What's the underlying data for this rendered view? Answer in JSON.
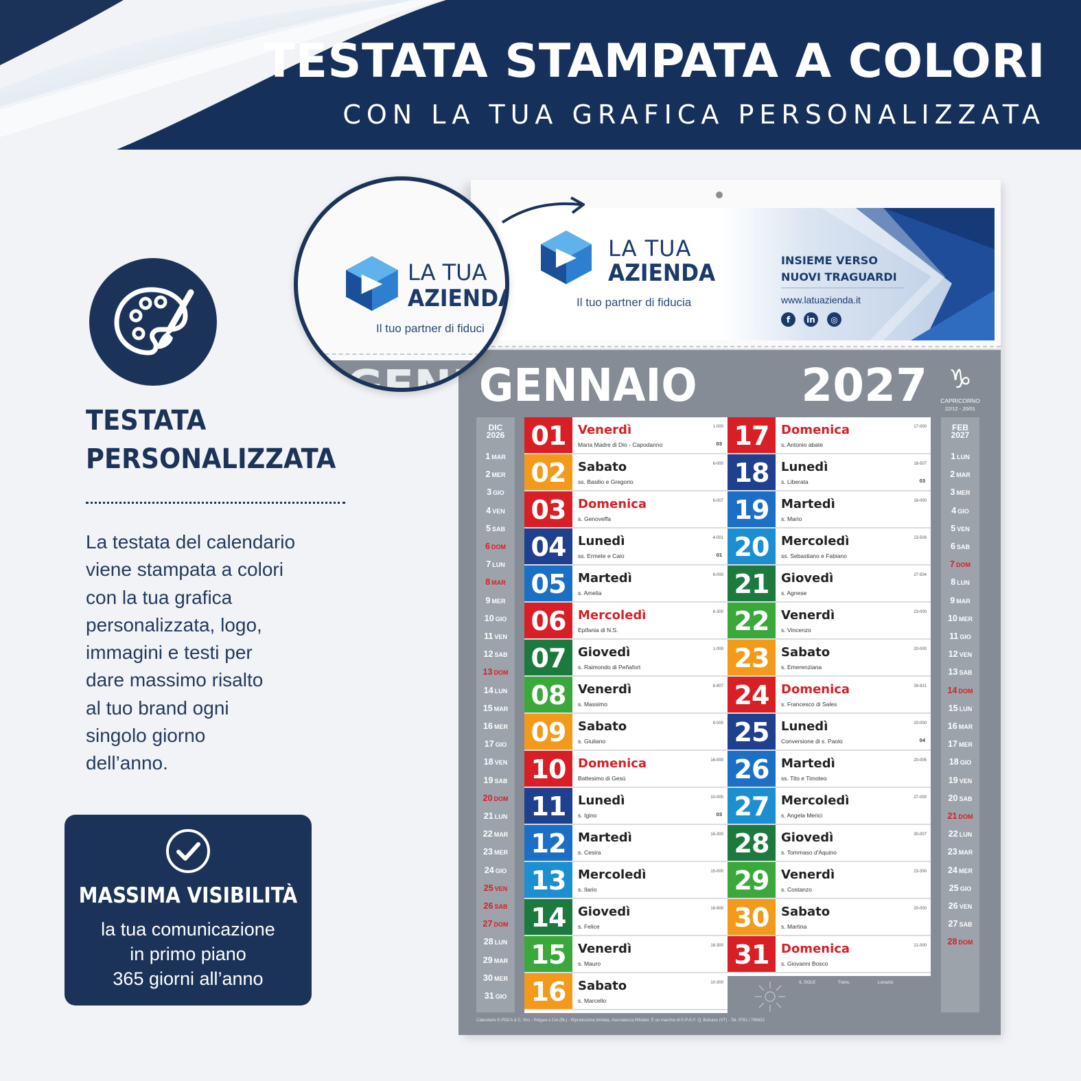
{
  "banner": {
    "title": "TESTATA STAMPATA A COLORI",
    "subtitle": "CON LA TUA GRAFICA PERSONALIZZATA",
    "color": "#1b3358"
  },
  "left": {
    "icon": "palette-icon",
    "title_lines": [
      "TESTATA",
      "PERSONALIZZATA"
    ],
    "body_lines": [
      "La testata del calendario",
      "viene stampata a colori",
      "con la tua grafica",
      "personalizzata, logo,",
      "immagini e testi per",
      "dare massimo risalto",
      "al tuo brand ogni",
      "singolo giorno",
      "dell’anno."
    ],
    "box": {
      "icon": "check-circle-icon",
      "title": "MASSIMA VISIBILITÀ",
      "lines": [
        "la tua comunicazione",
        "in primo piano",
        "365 giorni all’anno"
      ]
    }
  },
  "zoom": {
    "la": "LA TUA",
    "az": "AZIENDA",
    "tag": "Il tuo partner di fiduci",
    "month_fragment": "GENNAI"
  },
  "header": {
    "la": "LA TUA",
    "az": "AZIENDA",
    "tagline": "Il tuo partner di fiducia",
    "slogan": [
      "INSIEME VERSO",
      "NUOVI TRAGUARDI"
    ],
    "url": "www.latuazienda.it",
    "social": [
      "f",
      "in",
      "◎"
    ],
    "social_icons": [
      "facebook-icon",
      "linkedin-icon",
      "instagram-icon"
    ]
  },
  "calendar": {
    "month": "GENNAIO",
    "year": "2027",
    "zodiac_symbol": "♑",
    "zodiac_name": "CAPRICORNO",
    "zodiac_dates": "22/12 - 20/01",
    "prev": {
      "head": [
        "DIC",
        "2026"
      ],
      "days": [
        [
          "1",
          "MAR"
        ],
        [
          "2",
          "MER"
        ],
        [
          "3",
          "GIO"
        ],
        [
          "4",
          "VEN"
        ],
        [
          "5",
          "SAB"
        ],
        [
          "6",
          "DOM"
        ],
        [
          "7",
          "LUN"
        ],
        [
          "8",
          "MAR"
        ],
        [
          "9",
          "MER"
        ],
        [
          "10",
          "GIO"
        ],
        [
          "11",
          "VEN"
        ],
        [
          "12",
          "SAB"
        ],
        [
          "13",
          "DOM"
        ],
        [
          "14",
          "LUN"
        ],
        [
          "15",
          "MAR"
        ],
        [
          "16",
          "MER"
        ],
        [
          "17",
          "GIO"
        ],
        [
          "18",
          "VEN"
        ],
        [
          "19",
          "SAB"
        ],
        [
          "20",
          "DOM"
        ],
        [
          "21",
          "LUN"
        ],
        [
          "22",
          "MAR"
        ],
        [
          "23",
          "MER"
        ],
        [
          "24",
          "GIO"
        ],
        [
          "25",
          "VEN"
        ],
        [
          "26",
          "SAB"
        ],
        [
          "27",
          "DOM"
        ],
        [
          "28",
          "LUN"
        ],
        [
          "29",
          "MAR"
        ],
        [
          "30",
          "MER"
        ],
        [
          "31",
          "GIO"
        ]
      ],
      "red": [
        "6",
        "8",
        "13",
        "20",
        "25",
        "26",
        "27"
      ]
    },
    "next": {
      "head": [
        "FEB",
        "2027"
      ],
      "days": [
        [
          "1",
          "LUN"
        ],
        [
          "2",
          "MAR"
        ],
        [
          "3",
          "MER"
        ],
        [
          "4",
          "GIO"
        ],
        [
          "5",
          "VEN"
        ],
        [
          "6",
          "SAB"
        ],
        [
          "7",
          "DOM"
        ],
        [
          "8",
          "LUN"
        ],
        [
          "9",
          "MAR"
        ],
        [
          "10",
          "MER"
        ],
        [
          "11",
          "GIO"
        ],
        [
          "12",
          "VEN"
        ],
        [
          "13",
          "SAB"
        ],
        [
          "14",
          "DOM"
        ],
        [
          "15",
          "LUN"
        ],
        [
          "16",
          "MAR"
        ],
        [
          "17",
          "MER"
        ],
        [
          "18",
          "GIO"
        ],
        [
          "19",
          "VEN"
        ],
        [
          "20",
          "SAB"
        ],
        [
          "21",
          "DOM"
        ],
        [
          "22",
          "LUN"
        ],
        [
          "23",
          "MAR"
        ],
        [
          "24",
          "MER"
        ],
        [
          "25",
          "GIO"
        ],
        [
          "26",
          "VEN"
        ],
        [
          "27",
          "SAB"
        ],
        [
          "28",
          "DOM"
        ]
      ],
      "red": [
        "7",
        "14",
        "21",
        "28"
      ]
    },
    "days": [
      {
        "n": "01",
        "d": "Venerdì",
        "s": "Maria Madre di Dio - Capodanno",
        "c": "#d91f26",
        "red": true,
        "t": "1-000",
        "w": "03"
      },
      {
        "n": "02",
        "d": "Sabato",
        "s": "ss. Basilio e Gregorio",
        "c": "#f39a1b",
        "t": "6-000"
      },
      {
        "n": "03",
        "d": "Domenica",
        "s": "s. Genoveffa",
        "c": "#d91f26",
        "red": true,
        "t": "6-007"
      },
      {
        "n": "04",
        "d": "Lunedì",
        "s": "ss. Ermete e Caio",
        "c": "#1f3f8f",
        "t": "4-001",
        "w": "01"
      },
      {
        "n": "05",
        "d": "Martedì",
        "s": "s. Amelia",
        "c": "#1b6fc4",
        "t": "6-000"
      },
      {
        "n": "06",
        "d": "Mercoledì",
        "s": "Epifania di N.S.",
        "c": "#d91f26",
        "red": true,
        "t": "6-300"
      },
      {
        "n": "07",
        "d": "Giovedì",
        "s": "s. Raimondo di Peñafort",
        "c": "#1d7a3e",
        "t": "1-000"
      },
      {
        "n": "08",
        "d": "Venerdì",
        "s": "s. Massimo",
        "c": "#3aa83a",
        "t": "6-807"
      },
      {
        "n": "09",
        "d": "Sabato",
        "s": "s. Giuliano",
        "c": "#f39a1b",
        "t": "6-000"
      },
      {
        "n": "10",
        "d": "Domenica",
        "s": "Battesimo di Gesù",
        "c": "#d91f26",
        "red": true,
        "t": "16-000"
      },
      {
        "n": "11",
        "d": "Lunedì",
        "s": "s. Igino",
        "c": "#1f3f8f",
        "t": "10-000",
        "w": "03"
      },
      {
        "n": "12",
        "d": "Martedì",
        "s": "s. Cesira",
        "c": "#1b6fc4",
        "t": "16-300"
      },
      {
        "n": "13",
        "d": "Mercoledì",
        "s": "s. Ilario",
        "c": "#1b8fd0",
        "t": "15-000"
      },
      {
        "n": "14",
        "d": "Giovedì",
        "s": "s. Felice",
        "c": "#1d7a3e",
        "t": "16-900"
      },
      {
        "n": "15",
        "d": "Venerdì",
        "s": "s. Mauro",
        "c": "#3aa83a",
        "t": "16-300"
      },
      {
        "n": "16",
        "d": "Sabato",
        "s": "s. Marcello",
        "c": "#f39a1b",
        "t": "10-300"
      },
      {
        "n": "17",
        "d": "Domenica",
        "s": "s. Antonio abate",
        "c": "#d91f26",
        "red": true,
        "t": "17-000"
      },
      {
        "n": "18",
        "d": "Lunedì",
        "s": "s. Liberata",
        "c": "#1f3f8f",
        "t": "16-507",
        "w": "03"
      },
      {
        "n": "19",
        "d": "Martedì",
        "s": "s. Mario",
        "c": "#1b6fc4",
        "t": "18-000"
      },
      {
        "n": "20",
        "d": "Mercoledì",
        "s": "ss. Sebastiano e Fabiano",
        "c": "#1b8fd0",
        "t": "23-509"
      },
      {
        "n": "21",
        "d": "Giovedì",
        "s": "s. Agnese",
        "c": "#1d7a3e",
        "t": "27-504"
      },
      {
        "n": "22",
        "d": "Venerdì",
        "s": "s. Vincenzo",
        "c": "#3aa83a",
        "t": "23-000"
      },
      {
        "n": "23",
        "d": "Sabato",
        "s": "s. Emerenziana",
        "c": "#f39a1b",
        "t": "20-000"
      },
      {
        "n": "24",
        "d": "Domenica",
        "s": "s. Francesco di Sales",
        "c": "#d91f26",
        "red": true,
        "t": "26-931"
      },
      {
        "n": "25",
        "d": "Lunedì",
        "s": "Conversione di s. Paolo",
        "c": "#1f3f8f",
        "t": "20-000",
        "w": "04"
      },
      {
        "n": "26",
        "d": "Martedì",
        "s": "ss. Tito e Timoteo",
        "c": "#1b6fc4",
        "t": "20-005"
      },
      {
        "n": "27",
        "d": "Mercoledì",
        "s": "s. Angela Merici",
        "c": "#1b8fd0",
        "t": "27-000"
      },
      {
        "n": "28",
        "d": "Giovedì",
        "s": "s. Tommaso d'Aquino",
        "c": "#1d7a3e",
        "t": "30-007"
      },
      {
        "n": "29",
        "d": "Venerdì",
        "s": "s. Costanzo",
        "c": "#3aa83a",
        "t": "23-300"
      },
      {
        "n": "30",
        "d": "Sabato",
        "s": "s. Martina",
        "c": "#f39a1b",
        "t": "20-000"
      },
      {
        "n": "31",
        "d": "Domenica",
        "s": "s. Giovanni Bosco",
        "c": "#d91f26",
        "red": true,
        "t": "21-000"
      }
    ],
    "sun_moon": {
      "sole": "IL SOLE",
      "fase": "Trans.",
      "luna": "Lunazio"
    },
    "footer": "Calendario E-PDCA & C. Snc - Pelgasi e Ceì (BL) - Riproduzione limitata, riservatezza Rifolder. È un marchio di E-P-E-F. Q. Bolzano (VT) - Tel. 0761 / 789422"
  }
}
